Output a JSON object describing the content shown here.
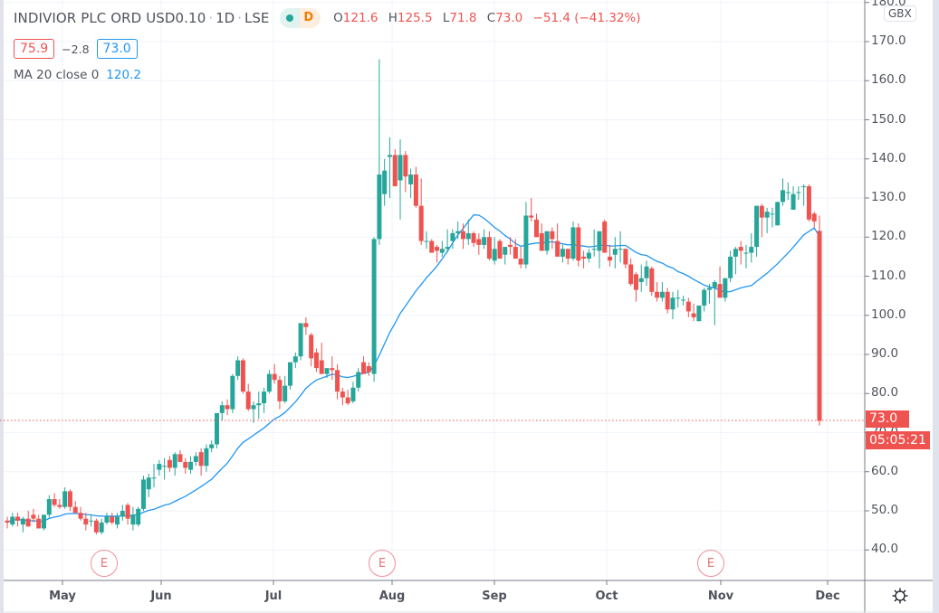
{
  "header": {
    "symbol_title": "INDIVIOR PLC ORD USD0.10",
    "interval": "1D",
    "exchange": "LSE",
    "status_letter": "D",
    "ohlc": {
      "o_label": "O",
      "o": "121.6",
      "h_label": "H",
      "h": "125.5",
      "l_label": "L",
      "l": "71.8",
      "c_label": "C",
      "c": "73.0",
      "change": "−51.4 (−41.32%)"
    },
    "bid": "75.9",
    "spread": "−2.8",
    "ask": "73.0",
    "indicator_label": "MA 20 close 0",
    "indicator_value": "120.2"
  },
  "price_axis": {
    "currency": "GBX",
    "ticks": [
      "180.0",
      "170.0",
      "160.0",
      "150.0",
      "140.0",
      "130.0",
      "120.0",
      "110.0",
      "100.0",
      "90.0",
      "80.0",
      "70.0",
      "60.0",
      "50.0",
      "40.0"
    ],
    "last_price_label": "73.0",
    "countdown": "05:05:21"
  },
  "time_axis": {
    "labels": [
      "May",
      "Jun",
      "Jul",
      "Aug",
      "Sep",
      "Oct",
      "Nov",
      "Dec"
    ]
  },
  "earnings_markers": [
    {
      "label": "E",
      "x": 115
    },
    {
      "label": "E",
      "x": 422
    },
    {
      "label": "E",
      "x": 785
    }
  ],
  "colors": {
    "up": "#26a69a",
    "down": "#ef5350",
    "ma": "#2196f3",
    "grid": "#f0f3fa",
    "axis_text": "#50535e"
  },
  "chart_data": {
    "type": "candlestick",
    "title": "INDIVIOR PLC ORD USD0.10 · 1D · LSE",
    "xlabel": "",
    "ylabel": "GBX",
    "ylim": [
      33,
      181
    ],
    "grid": true,
    "x_ticks": [
      "May",
      "Jun",
      "Jul",
      "Aug",
      "Sep",
      "Oct",
      "Nov",
      "Dec"
    ],
    "legend": [
      "MA 20 close 0"
    ],
    "annotations": [
      "E (earnings) mid-May",
      "E (earnings) late Jul",
      "E (earnings) late Oct",
      "last price 73.0",
      "countdown 05:05:21"
    ],
    "series": [
      {
        "name": "OHLC",
        "values": [
          [
            47.5,
            48.5,
            45.5,
            47.0
          ],
          [
            46.5,
            49.5,
            46.0,
            48.5
          ],
          [
            48.5,
            49.5,
            46.0,
            47.5
          ],
          [
            46.5,
            48.5,
            44.5,
            48.0
          ],
          [
            48.0,
            50.0,
            46.0,
            46.0
          ],
          [
            49.0,
            50.5,
            47.0,
            48.0
          ],
          [
            48.0,
            49.0,
            45.5,
            45.5
          ],
          [
            45.5,
            48.5,
            45.0,
            49.0
          ],
          [
            49.0,
            54.0,
            48.0,
            53.0
          ],
          [
            53.0,
            54.5,
            51.0,
            51.5
          ],
          [
            51.5,
            53.0,
            50.5,
            51.0
          ],
          [
            51.0,
            56.0,
            50.5,
            55.0
          ],
          [
            55.0,
            55.5,
            50.0,
            51.0
          ],
          [
            51.0,
            52.5,
            49.5,
            49.5
          ],
          [
            49.5,
            51.0,
            47.5,
            48.0
          ],
          [
            48.0,
            49.5,
            45.0,
            46.5
          ],
          [
            47.5,
            49.0,
            46.0,
            47.5
          ],
          [
            47.5,
            48.0,
            44.0,
            44.5
          ],
          [
            44.5,
            48.0,
            44.0,
            47.0
          ],
          [
            47.0,
            49.5,
            46.5,
            48.5
          ],
          [
            48.5,
            49.5,
            46.5,
            47.0
          ],
          [
            46.5,
            49.5,
            45.5,
            48.5
          ],
          [
            48.5,
            51.5,
            47.5,
            50.0
          ],
          [
            51.5,
            52.0,
            46.5,
            48.0
          ],
          [
            46.5,
            51.0,
            45.0,
            49.0
          ],
          [
            46.5,
            51.0,
            46.0,
            50.5
          ],
          [
            50.5,
            59.0,
            50.0,
            58.0
          ],
          [
            55.5,
            59.5,
            53.5,
            58.5
          ],
          [
            58.5,
            62.0,
            56.0,
            58.5
          ],
          [
            60.5,
            63.0,
            59.0,
            62.0
          ],
          [
            61.5,
            63.5,
            58.0,
            61.5
          ],
          [
            63.0,
            64.0,
            60.0,
            61.0
          ],
          [
            61.0,
            65.0,
            59.0,
            64.5
          ],
          [
            64.5,
            65.5,
            62.5,
            62.5
          ],
          [
            62.5,
            63.5,
            59.5,
            61.0
          ],
          [
            60.5,
            64.0,
            59.5,
            62.5
          ],
          [
            62.5,
            65.0,
            61.5,
            64.0
          ],
          [
            65.0,
            66.0,
            59.0,
            61.5
          ],
          [
            61.5,
            67.0,
            60.0,
            66.0
          ],
          [
            66.0,
            68.0,
            65.0,
            67.0
          ],
          [
            67.0,
            72.0,
            66.0,
            75.0
          ],
          [
            75.0,
            78.0,
            73.0,
            77.0
          ],
          [
            77.0,
            78.5,
            74.5,
            76.0
          ],
          [
            76.0,
            85.0,
            75.0,
            84.5
          ],
          [
            84.5,
            89.5,
            83.5,
            88.5
          ],
          [
            88.5,
            89.0,
            80.0,
            80.5
          ],
          [
            80.5,
            82.5,
            75.5,
            76.0
          ],
          [
            76.0,
            78.0,
            72.5,
            77.0
          ],
          [
            77.0,
            80.5,
            73.5,
            77.5
          ],
          [
            77.5,
            81.5,
            75.0,
            80.5
          ],
          [
            80.5,
            86.0,
            80.0,
            85.0
          ],
          [
            85.0,
            87.5,
            82.5,
            83.5
          ],
          [
            83.5,
            84.5,
            76.0,
            78.0
          ],
          [
            78.0,
            84.5,
            77.5,
            82.0
          ],
          [
            82.0,
            86.5,
            81.0,
            88.0
          ],
          [
            88.0,
            90.5,
            86.5,
            89.5
          ],
          [
            89.5,
            95.0,
            88.5,
            98.0
          ],
          [
            98.0,
            99.5,
            95.0,
            97.0
          ],
          [
            95.0,
            95.5,
            87.0,
            89.0
          ],
          [
            90.5,
            91.5,
            85.5,
            86.5
          ],
          [
            88.5,
            93.0,
            85.0,
            85.0
          ],
          [
            85.0,
            86.0,
            84.0,
            86.5
          ],
          [
            86.5,
            89.5,
            83.5,
            86.0
          ],
          [
            86.0,
            87.5,
            78.5,
            80.5
          ],
          [
            80.5,
            81.5,
            77.0,
            79.0
          ],
          [
            79.0,
            81.0,
            77.0,
            77.5
          ],
          [
            78.0,
            83.0,
            77.5,
            81.5
          ],
          [
            81.5,
            86.5,
            80.5,
            85.5
          ],
          [
            88.0,
            89.5,
            85.0,
            85.0
          ],
          [
            87.0,
            88.0,
            84.5,
            85.5
          ],
          [
            85.0,
            120.0,
            83.0,
            119.5
          ],
          [
            119.5,
            165.5,
            118.0,
            136.0
          ],
          [
            131.0,
            140.0,
            128.0,
            137.0
          ],
          [
            140.5,
            145.5,
            130.0,
            141.0
          ],
          [
            141.0,
            142.5,
            136.0,
            133.0
          ],
          [
            134.5,
            145.0,
            124.5,
            141.0
          ],
          [
            141.0,
            142.0,
            131.5,
            135.5
          ],
          [
            133.5,
            137.5,
            130.0,
            136.0
          ],
          [
            136.0,
            138.0,
            127.5,
            128.0
          ],
          [
            128.0,
            135.0,
            118.0,
            119.0
          ],
          [
            119.0,
            121.5,
            117.0,
            119.0
          ],
          [
            119.0,
            119.5,
            116.0,
            116.0
          ],
          [
            117.5,
            118.0,
            113.5,
            116.5
          ],
          [
            116.0,
            119.0,
            115.0,
            117.0
          ],
          [
            117.0,
            122.0,
            116.0,
            117.5
          ],
          [
            119.0,
            122.0,
            117.0,
            121.0
          ],
          [
            121.0,
            124.0,
            119.5,
            121.5
          ],
          [
            121.5,
            123.5,
            117.0,
            119.5
          ],
          [
            119.5,
            124.5,
            118.0,
            121.0
          ],
          [
            121.0,
            121.5,
            117.5,
            118.5
          ],
          [
            119.5,
            121.0,
            115.5,
            118.0
          ],
          [
            118.0,
            122.0,
            117.0,
            120.0
          ],
          [
            120.0,
            121.5,
            114.0,
            114.5
          ],
          [
            114.0,
            120.0,
            113.0,
            117.0
          ],
          [
            119.0,
            119.5,
            114.5,
            114.5
          ],
          [
            115.5,
            116.5,
            113.0,
            117.5
          ],
          [
            118.0,
            120.0,
            115.5,
            117.5
          ],
          [
            117.5,
            119.5,
            114.5,
            114.5
          ],
          [
            114.5,
            117.5,
            112.0,
            113.0
          ],
          [
            113.0,
            129.0,
            112.0,
            125.5
          ],
          [
            125.5,
            130.0,
            124.0,
            125.0
          ],
          [
            124.5,
            126.0,
            120.0,
            120.0
          ],
          [
            121.0,
            123.5,
            116.5,
            116.5
          ],
          [
            116.5,
            121.5,
            115.5,
            121.5
          ],
          [
            121.5,
            122.5,
            117.0,
            119.5
          ],
          [
            119.0,
            123.5,
            116.0,
            115.0
          ],
          [
            115.0,
            118.0,
            113.5,
            117.0
          ],
          [
            117.0,
            117.0,
            113.0,
            114.5
          ],
          [
            114.5,
            124.0,
            114.0,
            122.5
          ],
          [
            122.5,
            123.5,
            112.5,
            114.0
          ],
          [
            115.0,
            116.5,
            112.0,
            114.5
          ],
          [
            114.5,
            117.0,
            113.5,
            116.0
          ],
          [
            117.0,
            122.0,
            115.0,
            117.0
          ],
          [
            116.5,
            121.5,
            112.0,
            121.5
          ],
          [
            124.0,
            124.5,
            116.0,
            116.0
          ],
          [
            115.0,
            118.0,
            112.5,
            114.0
          ],
          [
            115.5,
            120.0,
            112.0,
            117.0
          ],
          [
            117.0,
            121.5,
            113.5,
            117.0
          ],
          [
            117.0,
            117.0,
            112.0,
            113.0
          ],
          [
            113.0,
            114.5,
            107.5,
            108.0
          ],
          [
            110.5,
            111.0,
            103.5,
            106.5
          ],
          [
            108.5,
            113.0,
            106.0,
            109.5
          ],
          [
            109.5,
            114.0,
            107.5,
            112.5
          ],
          [
            112.0,
            112.5,
            105.0,
            106.0
          ],
          [
            106.0,
            108.5,
            103.5,
            104.5
          ],
          [
            104.5,
            108.5,
            103.5,
            106.0
          ],
          [
            106.0,
            107.0,
            100.5,
            101.5
          ],
          [
            101.5,
            106.0,
            99.0,
            104.5
          ],
          [
            104.5,
            106.5,
            102.0,
            104.5
          ],
          [
            104.0,
            105.0,
            102.5,
            104.0
          ],
          [
            103.5,
            104.5,
            99.5,
            101.0
          ],
          [
            100.5,
            103.0,
            98.5,
            99.5
          ],
          [
            98.5,
            102.0,
            98.5,
            102.5
          ],
          [
            102.5,
            107.0,
            101.0,
            106.5
          ],
          [
            106.5,
            108.0,
            103.0,
            107.0
          ],
          [
            107.0,
            109.0,
            97.5,
            108.5
          ],
          [
            108.0,
            112.5,
            105.0,
            104.5
          ],
          [
            104.5,
            108.0,
            103.5,
            109.5
          ],
          [
            109.5,
            116.5,
            108.5,
            115.0
          ],
          [
            115.0,
            117.5,
            110.5,
            117.0
          ],
          [
            117.5,
            119.0,
            113.0,
            116.5
          ],
          [
            116.0,
            118.0,
            112.0,
            116.0
          ],
          [
            116.0,
            121.0,
            113.5,
            117.5
          ],
          [
            117.5,
            122.5,
            115.0,
            128.0
          ],
          [
            128.0,
            128.5,
            120.0,
            125.0
          ],
          [
            125.0,
            127.5,
            121.0,
            126.5
          ],
          [
            126.0,
            127.5,
            122.5,
            126.0
          ],
          [
            123.0,
            128.0,
            123.0,
            129.0
          ],
          [
            129.0,
            135.0,
            128.0,
            132.0
          ],
          [
            131.5,
            134.0,
            129.5,
            131.5
          ],
          [
            127.0,
            133.0,
            127.0,
            131.0
          ],
          [
            131.5,
            133.0,
            129.5,
            131.5
          ],
          [
            133.0,
            133.5,
            128.0,
            133.0
          ],
          [
            133.0,
            133.5,
            124.0,
            124.5
          ],
          [
            126.0,
            126.5,
            122.5,
            124.0
          ],
          [
            121.6,
            125.5,
            71.8,
            73.0
          ]
        ]
      },
      {
        "name": "MA 20 close 0",
        "values": "computed 20-period SMA of close; last value 120.2"
      }
    ]
  }
}
